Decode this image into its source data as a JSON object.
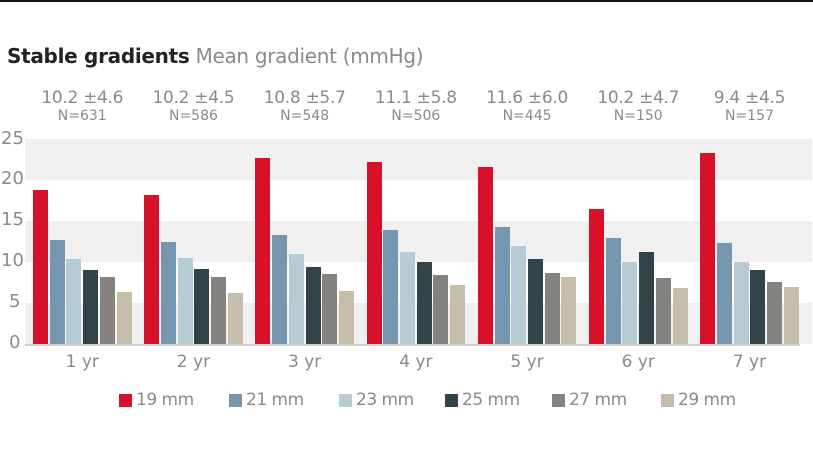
{
  "title": {
    "bold": "Stable gradients",
    "subtitle": "Mean gradient (mmHg)"
  },
  "stats": [
    {
      "mean": "10.2 ±4.6",
      "n": "N=631"
    },
    {
      "mean": "10.2 ±4.5",
      "n": "N=586"
    },
    {
      "mean": "10.8 ±5.7",
      "n": "N=548"
    },
    {
      "mean": "11.1 ±5.8",
      "n": "N=506"
    },
    {
      "mean": "11.6 ±6.0",
      "n": "N=445"
    },
    {
      "mean": "10.2 ±4.7",
      "n": "N=150"
    },
    {
      "mean": "9.4 ±4.5",
      "n": "N=157"
    }
  ],
  "y_ticks": [
    "0",
    "5",
    "10",
    "15",
    "20",
    "25"
  ],
  "legend": [
    {
      "label": "19 mm",
      "color": "#d7112a"
    },
    {
      "label": "21 mm",
      "color": "#7596ae"
    },
    {
      "label": "23 mm",
      "color": "#b6cbd3"
    },
    {
      "label": "25 mm",
      "color": "#334448"
    },
    {
      "label": "27 mm",
      "color": "#85837f"
    },
    {
      "label": "29 mm",
      "color": "#c6bdaa"
    }
  ],
  "chart_data": {
    "type": "bar",
    "title": "Stable gradients",
    "subtitle": "Mean gradient (mmHg)",
    "xlabel": "",
    "ylabel": "Mean gradient (mmHg)",
    "ylim": [
      0,
      25
    ],
    "yticks": [
      0,
      5,
      10,
      15,
      20,
      25
    ],
    "grid": "alternating horizontal bands",
    "legend_position": "bottom",
    "categories": [
      "1 yr",
      "2 yr",
      "3 yr",
      "4 yr",
      "5 yr",
      "6 yr",
      "7 yr"
    ],
    "annotations": [
      {
        "category": "1 yr",
        "mean_sd": "10.2 ±4.6",
        "n": 631
      },
      {
        "category": "2 yr",
        "mean_sd": "10.2 ±4.5",
        "n": 586
      },
      {
        "category": "3 yr",
        "mean_sd": "10.8 ±5.7",
        "n": 548
      },
      {
        "category": "4 yr",
        "mean_sd": "11.1 ±5.8",
        "n": 506
      },
      {
        "category": "5 yr",
        "mean_sd": "11.6 ±6.0",
        "n": 445
      },
      {
        "category": "6 yr",
        "mean_sd": "10.2 ±4.7",
        "n": 150
      },
      {
        "category": "7 yr",
        "mean_sd": "9.4 ±4.5",
        "n": 157
      }
    ],
    "series": [
      {
        "name": "19 mm",
        "color": "#d7112a",
        "values": [
          18.8,
          18.2,
          22.7,
          22.3,
          21.6,
          16.5,
          23.3
        ]
      },
      {
        "name": "21 mm",
        "color": "#7596ae",
        "values": [
          12.7,
          12.5,
          13.3,
          13.9,
          14.3,
          12.9,
          12.3
        ]
      },
      {
        "name": "23 mm",
        "color": "#b6cbd3",
        "values": [
          10.4,
          10.5,
          11.0,
          11.3,
          12.0,
          10.0,
          10.0
        ]
      },
      {
        "name": "25 mm",
        "color": "#334448",
        "values": [
          9.1,
          9.2,
          9.4,
          10.0,
          10.4,
          11.2,
          9.0
        ]
      },
      {
        "name": "27 mm",
        "color": "#85837f",
        "values": [
          8.2,
          8.2,
          8.5,
          8.4,
          8.7,
          8.1,
          7.6
        ]
      },
      {
        "name": "29 mm",
        "color": "#c6bdaa",
        "values": [
          6.3,
          6.2,
          6.5,
          7.2,
          8.2,
          6.8,
          7.0
        ]
      }
    ]
  }
}
